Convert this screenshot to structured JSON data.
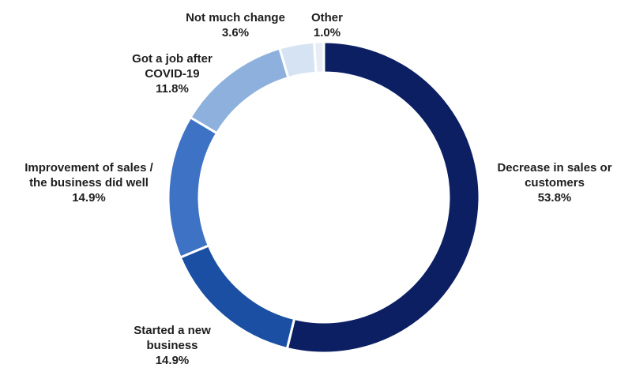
{
  "chart_data": {
    "type": "pie",
    "title": "",
    "categories": [
      "Decrease in sales or customers",
      "Started a new business",
      "Improvement of sales / the business did well",
      "Got a job after COVID-19",
      "Not much change",
      "Other"
    ],
    "values": [
      53.8,
      14.9,
      14.9,
      11.8,
      3.6,
      1.0
    ],
    "value_labels": [
      "53.8%",
      "14.9%",
      "14.9%",
      "11.8%",
      "3.6%",
      "1.0%"
    ],
    "label_lines": [
      [
        "Decrease in sales or",
        "customers"
      ],
      [
        "Started a new",
        "business"
      ],
      [
        "Improvement of sales /",
        "the business did well"
      ],
      [
        "Got a job after",
        "COVID-19"
      ],
      [
        "Not much change"
      ],
      [
        "Other"
      ]
    ],
    "colors": [
      "#0c1f63",
      "#1a4fa3",
      "#3d72c4",
      "#8eb0dd",
      "#d6e3f3",
      "#e7edf6"
    ],
    "donut": true,
    "legend": "none"
  }
}
